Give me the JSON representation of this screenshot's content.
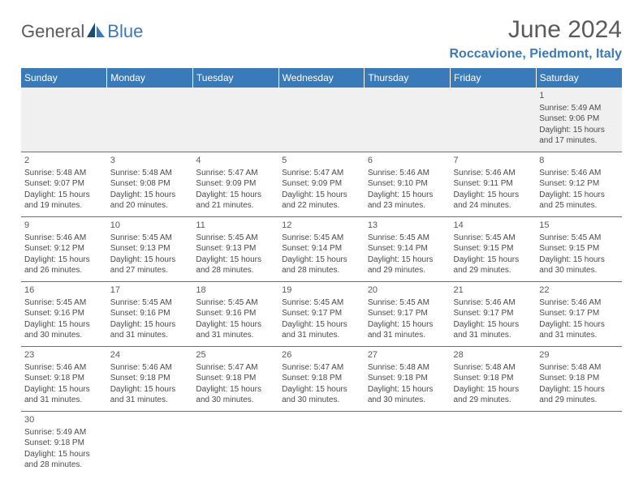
{
  "logo": {
    "text_general": "General",
    "text_blue": "Blue",
    "icon_color_dark": "#1a4d7a",
    "icon_color_light": "#3b7ab8"
  },
  "header": {
    "month_title": "June 2024",
    "location": "Roccavione, Piedmont, Italy"
  },
  "colors": {
    "header_bg": "#3b7ab8",
    "header_text": "#ffffff",
    "border": "#3b7ab8",
    "first_row_bg": "#f0f0f0",
    "text_gray": "#5a5a5a",
    "body_text": "#4a4a4a"
  },
  "weekdays": [
    "Sunday",
    "Monday",
    "Tuesday",
    "Wednesday",
    "Thursday",
    "Friday",
    "Saturday"
  ],
  "weeks": [
    [
      null,
      null,
      null,
      null,
      null,
      null,
      {
        "num": "1",
        "sunrise": "Sunrise: 5:49 AM",
        "sunset": "Sunset: 9:06 PM",
        "daylight": "Daylight: 15 hours and 17 minutes."
      }
    ],
    [
      {
        "num": "2",
        "sunrise": "Sunrise: 5:48 AM",
        "sunset": "Sunset: 9:07 PM",
        "daylight": "Daylight: 15 hours and 19 minutes."
      },
      {
        "num": "3",
        "sunrise": "Sunrise: 5:48 AM",
        "sunset": "Sunset: 9:08 PM",
        "daylight": "Daylight: 15 hours and 20 minutes."
      },
      {
        "num": "4",
        "sunrise": "Sunrise: 5:47 AM",
        "sunset": "Sunset: 9:09 PM",
        "daylight": "Daylight: 15 hours and 21 minutes."
      },
      {
        "num": "5",
        "sunrise": "Sunrise: 5:47 AM",
        "sunset": "Sunset: 9:09 PM",
        "daylight": "Daylight: 15 hours and 22 minutes."
      },
      {
        "num": "6",
        "sunrise": "Sunrise: 5:46 AM",
        "sunset": "Sunset: 9:10 PM",
        "daylight": "Daylight: 15 hours and 23 minutes."
      },
      {
        "num": "7",
        "sunrise": "Sunrise: 5:46 AM",
        "sunset": "Sunset: 9:11 PM",
        "daylight": "Daylight: 15 hours and 24 minutes."
      },
      {
        "num": "8",
        "sunrise": "Sunrise: 5:46 AM",
        "sunset": "Sunset: 9:12 PM",
        "daylight": "Daylight: 15 hours and 25 minutes."
      }
    ],
    [
      {
        "num": "9",
        "sunrise": "Sunrise: 5:46 AM",
        "sunset": "Sunset: 9:12 PM",
        "daylight": "Daylight: 15 hours and 26 minutes."
      },
      {
        "num": "10",
        "sunrise": "Sunrise: 5:45 AM",
        "sunset": "Sunset: 9:13 PM",
        "daylight": "Daylight: 15 hours and 27 minutes."
      },
      {
        "num": "11",
        "sunrise": "Sunrise: 5:45 AM",
        "sunset": "Sunset: 9:13 PM",
        "daylight": "Daylight: 15 hours and 28 minutes."
      },
      {
        "num": "12",
        "sunrise": "Sunrise: 5:45 AM",
        "sunset": "Sunset: 9:14 PM",
        "daylight": "Daylight: 15 hours and 28 minutes."
      },
      {
        "num": "13",
        "sunrise": "Sunrise: 5:45 AM",
        "sunset": "Sunset: 9:14 PM",
        "daylight": "Daylight: 15 hours and 29 minutes."
      },
      {
        "num": "14",
        "sunrise": "Sunrise: 5:45 AM",
        "sunset": "Sunset: 9:15 PM",
        "daylight": "Daylight: 15 hours and 29 minutes."
      },
      {
        "num": "15",
        "sunrise": "Sunrise: 5:45 AM",
        "sunset": "Sunset: 9:15 PM",
        "daylight": "Daylight: 15 hours and 30 minutes."
      }
    ],
    [
      {
        "num": "16",
        "sunrise": "Sunrise: 5:45 AM",
        "sunset": "Sunset: 9:16 PM",
        "daylight": "Daylight: 15 hours and 30 minutes."
      },
      {
        "num": "17",
        "sunrise": "Sunrise: 5:45 AM",
        "sunset": "Sunset: 9:16 PM",
        "daylight": "Daylight: 15 hours and 31 minutes."
      },
      {
        "num": "18",
        "sunrise": "Sunrise: 5:45 AM",
        "sunset": "Sunset: 9:16 PM",
        "daylight": "Daylight: 15 hours and 31 minutes."
      },
      {
        "num": "19",
        "sunrise": "Sunrise: 5:45 AM",
        "sunset": "Sunset: 9:17 PM",
        "daylight": "Daylight: 15 hours and 31 minutes."
      },
      {
        "num": "20",
        "sunrise": "Sunrise: 5:45 AM",
        "sunset": "Sunset: 9:17 PM",
        "daylight": "Daylight: 15 hours and 31 minutes."
      },
      {
        "num": "21",
        "sunrise": "Sunrise: 5:46 AM",
        "sunset": "Sunset: 9:17 PM",
        "daylight": "Daylight: 15 hours and 31 minutes."
      },
      {
        "num": "22",
        "sunrise": "Sunrise: 5:46 AM",
        "sunset": "Sunset: 9:17 PM",
        "daylight": "Daylight: 15 hours and 31 minutes."
      }
    ],
    [
      {
        "num": "23",
        "sunrise": "Sunrise: 5:46 AM",
        "sunset": "Sunset: 9:18 PM",
        "daylight": "Daylight: 15 hours and 31 minutes."
      },
      {
        "num": "24",
        "sunrise": "Sunrise: 5:46 AM",
        "sunset": "Sunset: 9:18 PM",
        "daylight": "Daylight: 15 hours and 31 minutes."
      },
      {
        "num": "25",
        "sunrise": "Sunrise: 5:47 AM",
        "sunset": "Sunset: 9:18 PM",
        "daylight": "Daylight: 15 hours and 30 minutes."
      },
      {
        "num": "26",
        "sunrise": "Sunrise: 5:47 AM",
        "sunset": "Sunset: 9:18 PM",
        "daylight": "Daylight: 15 hours and 30 minutes."
      },
      {
        "num": "27",
        "sunrise": "Sunrise: 5:48 AM",
        "sunset": "Sunset: 9:18 PM",
        "daylight": "Daylight: 15 hours and 30 minutes."
      },
      {
        "num": "28",
        "sunrise": "Sunrise: 5:48 AM",
        "sunset": "Sunset: 9:18 PM",
        "daylight": "Daylight: 15 hours and 29 minutes."
      },
      {
        "num": "29",
        "sunrise": "Sunrise: 5:48 AM",
        "sunset": "Sunset: 9:18 PM",
        "daylight": "Daylight: 15 hours and 29 minutes."
      }
    ],
    [
      {
        "num": "30",
        "sunrise": "Sunrise: 5:49 AM",
        "sunset": "Sunset: 9:18 PM",
        "daylight": "Daylight: 15 hours and 28 minutes."
      },
      null,
      null,
      null,
      null,
      null,
      null
    ]
  ]
}
